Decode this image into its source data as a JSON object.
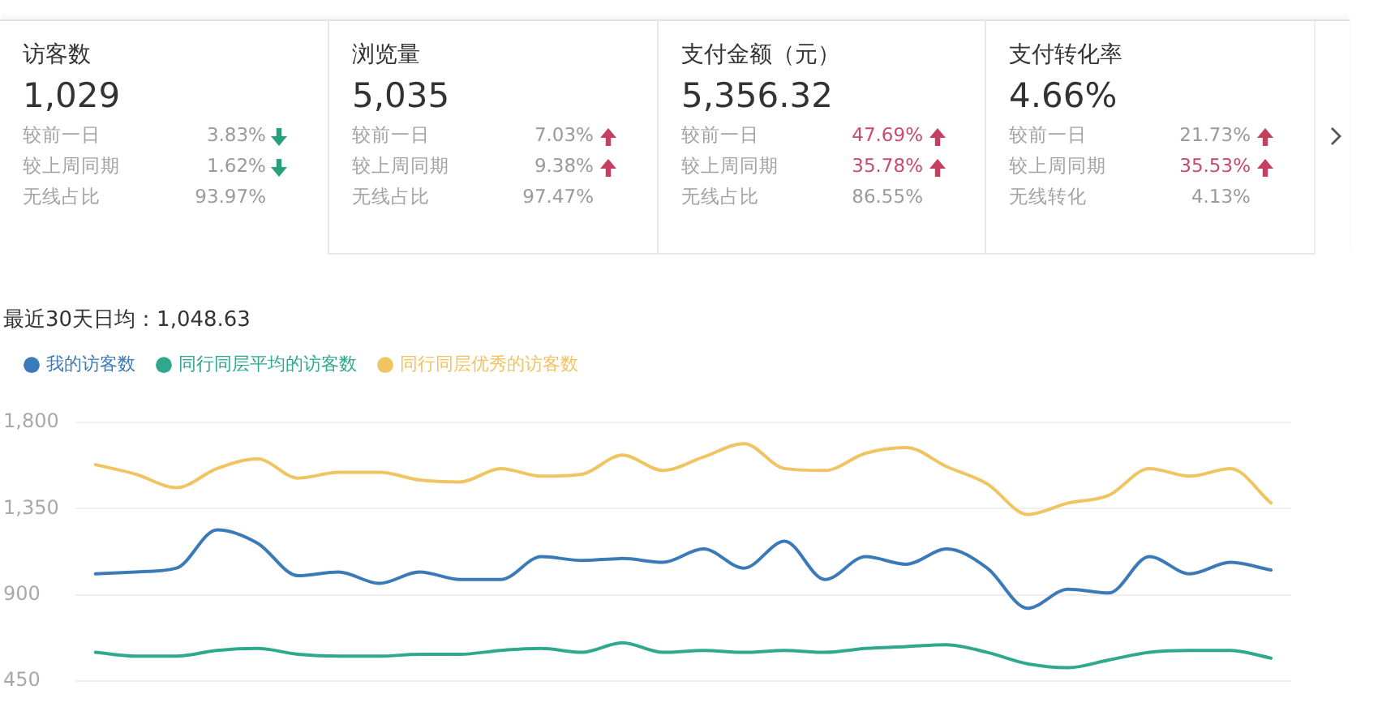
{
  "chart_data": [
    {
      "type": "other",
      "title": "访客数",
      "annotations": [
        "1,029",
        "较前一日",
        "3.83%",
        "较上周同期",
        "1.62%",
        "无线占比",
        "93.97%"
      ]
    },
    {
      "type": "other",
      "title": "浏览量",
      "annotations": [
        "5,035",
        "较前一日",
        "7.03%",
        "较上周同期",
        "9.38%",
        "无线占比",
        "97.47%"
      ]
    },
    {
      "type": "other",
      "title": "支付金额（元）",
      "annotations": [
        "5,356.32",
        "较前一日",
        "47.69%",
        "较上周同期",
        "35.78%",
        "无线占比",
        "86.55%"
      ]
    },
    {
      "type": "other",
      "title": "支付转化率",
      "annotations": [
        "4.66%",
        "较前一日",
        "21.73%",
        "较上周同期",
        "35.53%",
        "无线转化",
        "4.13%"
      ]
    },
    {
      "type": "line",
      "title": "最近30天日均：1,048.63",
      "categories": [
        null,
        null,
        null,
        null,
        null,
        null,
        null,
        null,
        null,
        null,
        null,
        null,
        null,
        null,
        null,
        null,
        null,
        null,
        null,
        null,
        null,
        null,
        null,
        null,
        null,
        null,
        null,
        null,
        null,
        null
      ],
      "series": [
        {
          "name": "我的访客数",
          "color": "#3a7ab8",
          "values": [
            1010,
            1020,
            1040,
            1240,
            1170,
            1000,
            1020,
            960,
            1020,
            980,
            980,
            1100,
            1080,
            1090,
            1070,
            1140,
            1040,
            1180,
            980,
            1100,
            1060,
            1140,
            1040,
            830,
            930,
            910,
            1100,
            1010,
            1070,
            1030
          ]
        },
        {
          "name": "同行同层平均的访客数",
          "color": "#2fa88e",
          "values": [
            600,
            580,
            580,
            610,
            620,
            590,
            580,
            580,
            590,
            590,
            610,
            620,
            600,
            650,
            600,
            610,
            600,
            610,
            600,
            620,
            630,
            640,
            600,
            540,
            520,
            560,
            600,
            610,
            610,
            570
          ]
        },
        {
          "name": "同行同层优秀的访客数",
          "color": "#f0c462",
          "values": [
            1580,
            1530,
            1460,
            1560,
            1610,
            1510,
            1540,
            1540,
            1500,
            1490,
            1560,
            1520,
            1530,
            1630,
            1550,
            1620,
            1690,
            1560,
            1550,
            1640,
            1670,
            1570,
            1480,
            1320,
            1380,
            1420,
            1560,
            1520,
            1560,
            1380
          ]
        }
      ],
      "ylim": [
        450,
        1800
      ],
      "yticks": [
        450,
        900,
        {
          "value": 1350,
          "label": "1,350"
        },
        {
          "value": 1800,
          "label": "1,800"
        }
      ],
      "grid": "y",
      "legend": "top left",
      "marker": "none",
      "tick_labels": "y"
    }
  ]
}
